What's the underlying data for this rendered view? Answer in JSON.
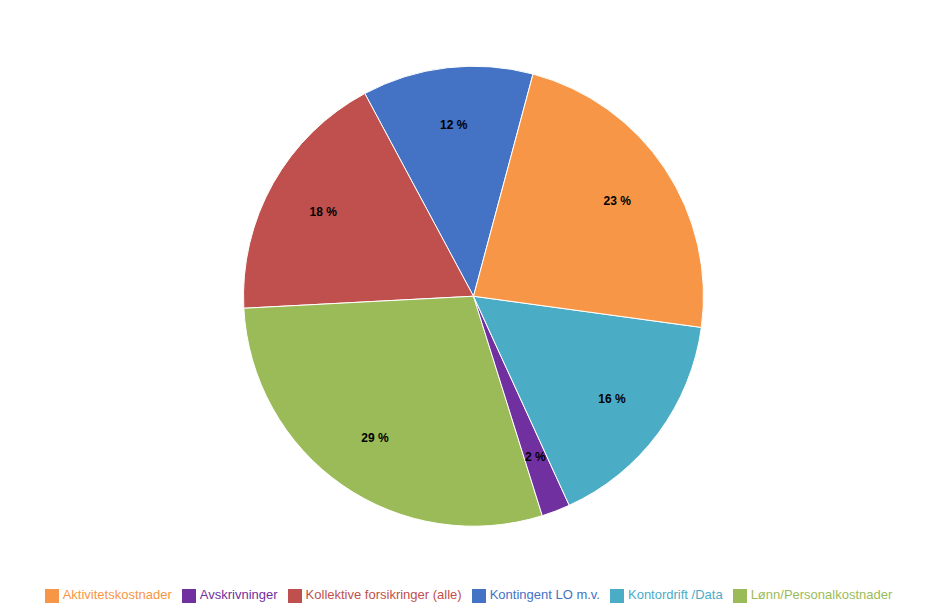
{
  "chart_data": {
    "type": "pie",
    "categories": [
      "Kontingent LO m.v.",
      "Kollektive forsikringer (alle)",
      "Lønn/Personalkostnader",
      "Avskrivninger",
      "Kontordrift /Data",
      "Aktivitetskostnader"
    ],
    "values": [
      12,
      18,
      29,
      2,
      16,
      23
    ],
    "value_labels": [
      "12 %",
      "18 %",
      "29 %",
      "2 %",
      "16 %",
      "23 %"
    ],
    "colors": [
      "#4472C4",
      "#C0504D",
      "#9BBB59",
      "#7030A0",
      "#4BACC6",
      "#F79646"
    ],
    "data_labels": true,
    "legend": "bottom"
  }
}
